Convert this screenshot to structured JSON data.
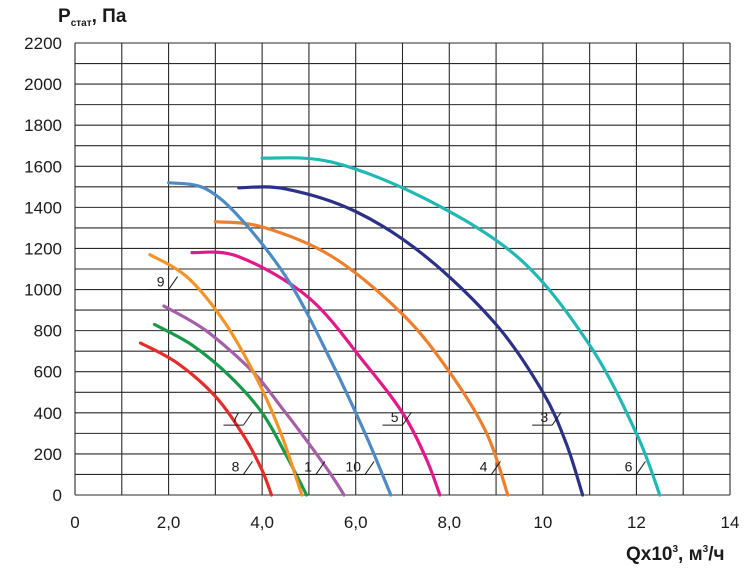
{
  "chart_data": {
    "type": "line",
    "title": "",
    "ylabel": {
      "main": "P",
      "sub": "стат",
      "suffix": ", Па"
    },
    "xlabel": {
      "main": "Qx10",
      "sup1": "3",
      "mid": ", м",
      "sup2": "3",
      "suffix": "/ч"
    },
    "xlim": [
      0,
      14
    ],
    "ylim": [
      0,
      2200
    ],
    "x_ticks": [
      {
        "v": 0,
        "label": "0"
      },
      {
        "v": 2,
        "label": "2,0"
      },
      {
        "v": 4,
        "label": "4,0"
      },
      {
        "v": 6,
        "label": "6,0"
      },
      {
        "v": 8,
        "label": "8,0"
      },
      {
        "v": 10,
        "label": "10"
      },
      {
        "v": 12,
        "label": "12"
      },
      {
        "v": 14,
        "label": "14"
      }
    ],
    "y_ticks": [
      {
        "v": 0,
        "label": "0"
      },
      {
        "v": 200,
        "label": "200"
      },
      {
        "v": 400,
        "label": "400"
      },
      {
        "v": 600,
        "label": "600"
      },
      {
        "v": 800,
        "label": "800"
      },
      {
        "v": 1000,
        "label": "1000"
      },
      {
        "v": 1200,
        "label": "1200"
      },
      {
        "v": 1400,
        "label": "1400"
      },
      {
        "v": 1600,
        "label": "1600"
      },
      {
        "v": 1800,
        "label": "1800"
      },
      {
        "v": 2000,
        "label": "2000"
      },
      {
        "v": 2200,
        "label": "2200"
      }
    ],
    "grid": {
      "x_step": 1,
      "y_step": 100
    },
    "series": [
      {
        "name": "1",
        "color": "#a45fa8",
        "points": [
          [
            1.9,
            920
          ],
          [
            2.8,
            800
          ],
          [
            3.8,
            600
          ],
          [
            4.4,
            430
          ],
          [
            5.0,
            250
          ],
          [
            5.5,
            90
          ],
          [
            5.75,
            0
          ]
        ],
        "label_at": [
          5.15,
          100
        ]
      },
      {
        "name": "3",
        "color": "#2b3186",
        "points": [
          [
            3.5,
            1495
          ],
          [
            4.5,
            1490
          ],
          [
            6.0,
            1380
          ],
          [
            7.5,
            1160
          ],
          [
            9.0,
            830
          ],
          [
            10.0,
            500
          ],
          [
            10.5,
            250
          ],
          [
            10.85,
            0
          ]
        ],
        "label_at": [
          10.2,
          340
        ]
      },
      {
        "name": "4",
        "color": "#ee7f2d",
        "points": [
          [
            3.0,
            1330
          ],
          [
            4.0,
            1305
          ],
          [
            5.5,
            1160
          ],
          [
            7.0,
            880
          ],
          [
            8.0,
            600
          ],
          [
            8.8,
            300
          ],
          [
            9.25,
            0
          ]
        ],
        "label_at": [
          8.9,
          100
        ]
      },
      {
        "name": "5",
        "color": "#e01a8a",
        "points": [
          [
            2.5,
            1180
          ],
          [
            3.5,
            1160
          ],
          [
            5.0,
            960
          ],
          [
            6.2,
            640
          ],
          [
            7.0,
            400
          ],
          [
            7.5,
            180
          ],
          [
            7.8,
            0
          ]
        ],
        "label_at": [
          7.0,
          340
        ]
      },
      {
        "name": "6",
        "color": "#21b8b4",
        "points": [
          [
            4.0,
            1640
          ],
          [
            5.5,
            1620
          ],
          [
            7.5,
            1440
          ],
          [
            9.5,
            1150
          ],
          [
            11.0,
            730
          ],
          [
            12.0,
            300
          ],
          [
            12.5,
            0
          ]
        ],
        "label_at": [
          12.0,
          100
        ]
      },
      {
        "name": "7",
        "color": "#199a4b",
        "points": [
          [
            1.7,
            830
          ],
          [
            2.5,
            730
          ],
          [
            3.3,
            580
          ],
          [
            4.0,
            400
          ],
          [
            4.5,
            200
          ],
          [
            4.95,
            0
          ]
        ],
        "label_at": [
          3.6,
          340
        ]
      },
      {
        "name": "8",
        "color": "#e32d2a",
        "points": [
          [
            1.4,
            740
          ],
          [
            2.2,
            640
          ],
          [
            3.0,
            480
          ],
          [
            3.6,
            290
          ],
          [
            4.0,
            120
          ],
          [
            4.2,
            0
          ]
        ],
        "label_at": [
          3.6,
          100
        ]
      },
      {
        "name": "9",
        "color": "#f39428",
        "points": [
          [
            1.6,
            1170
          ],
          [
            2.4,
            1060
          ],
          [
            3.2,
            840
          ],
          [
            3.9,
            560
          ],
          [
            4.4,
            300
          ],
          [
            4.85,
            0
          ]
        ],
        "label_at": [
          2.0,
          1000
        ]
      },
      {
        "name": "10",
        "color": "#4e8ac4",
        "points": [
          [
            2.0,
            1520
          ],
          [
            2.8,
            1490
          ],
          [
            3.6,
            1330
          ],
          [
            4.6,
            1030
          ],
          [
            5.5,
            640
          ],
          [
            6.2,
            300
          ],
          [
            6.75,
            0
          ]
        ],
        "label_at": [
          6.2,
          100
        ]
      }
    ]
  }
}
